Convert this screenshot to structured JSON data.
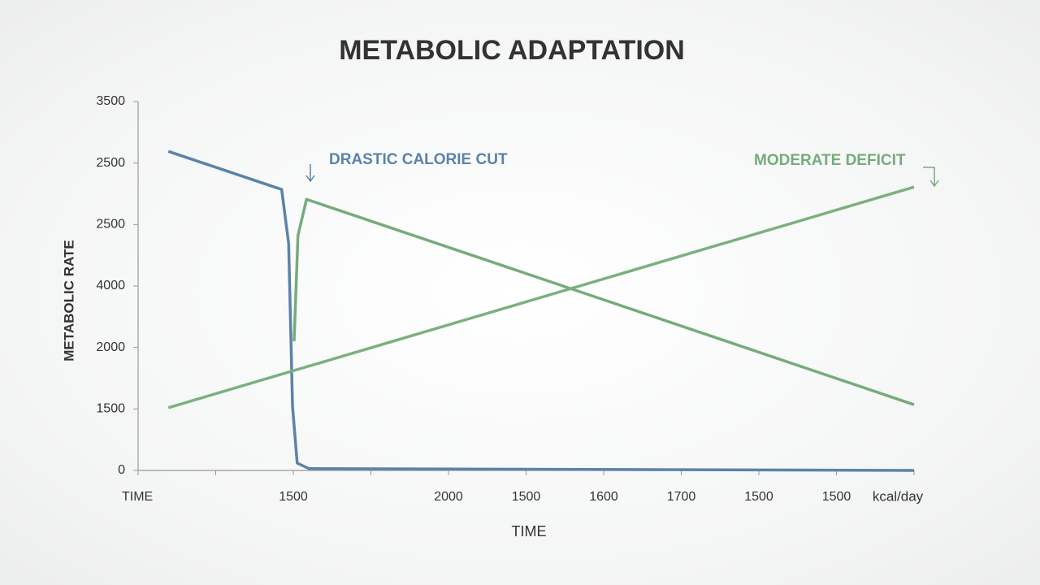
{
  "chart_data": {
    "type": "line",
    "title": "METABOLIC ADAPTATION",
    "y_label": "METABOLIC RATE",
    "x_label": "TIME",
    "x_unit": "kcal/day",
    "xlim": [
      0,
      10
    ],
    "ylim": [
      0,
      6
    ],
    "xticks": [
      {
        "value": 0,
        "label": "TIME"
      },
      {
        "value": 1,
        "label": null
      },
      {
        "value": 2,
        "label": "1500"
      },
      {
        "value": 3,
        "label": null
      },
      {
        "value": 4,
        "label": "2000"
      },
      {
        "value": 5,
        "label": "1500"
      },
      {
        "value": 6,
        "label": "1600"
      },
      {
        "value": 7,
        "label": "1700"
      },
      {
        "value": 8,
        "label": "1500"
      },
      {
        "value": 9,
        "label": "1500"
      },
      {
        "value": 10,
        "label": null
      }
    ],
    "yticks": [
      0,
      {
        "value": 1,
        "label": "1500"
      },
      {
        "value": 2,
        "label": "2000"
      },
      {
        "value": 3,
        "label": "4000"
      },
      {
        "value": 4,
        "label": "2500"
      },
      {
        "value": 5,
        "label": "2500"
      },
      {
        "value": 6,
        "label": "3500"
      }
    ],
    "series": [
      {
        "color": "#5b83a8",
        "x": [
          0.39,
          1.85,
          1.94,
          1.99,
          2.05,
          2.2,
          10
        ],
        "values": [
          5.19,
          4.57,
          3.69,
          1.04,
          0.12,
          0.03,
          0
        ]
      },
      {
        "color": "#76ab7c",
        "x": [
          2.01,
          2.06,
          2.17,
          10
        ],
        "values": [
          2.1,
          3.82,
          4.41,
          1.07
        ]
      },
      {
        "color": "#7bb080",
        "x": [
          0.39,
          10
        ],
        "values": [
          1.02,
          4.61
        ]
      }
    ],
    "annotations": [
      {
        "text": "DRASTIC CALORIE CUT",
        "color": "#5b83a8"
      },
      {
        "text": "MODERATE DEFICIT",
        "color": "#76ab7c"
      }
    ]
  }
}
